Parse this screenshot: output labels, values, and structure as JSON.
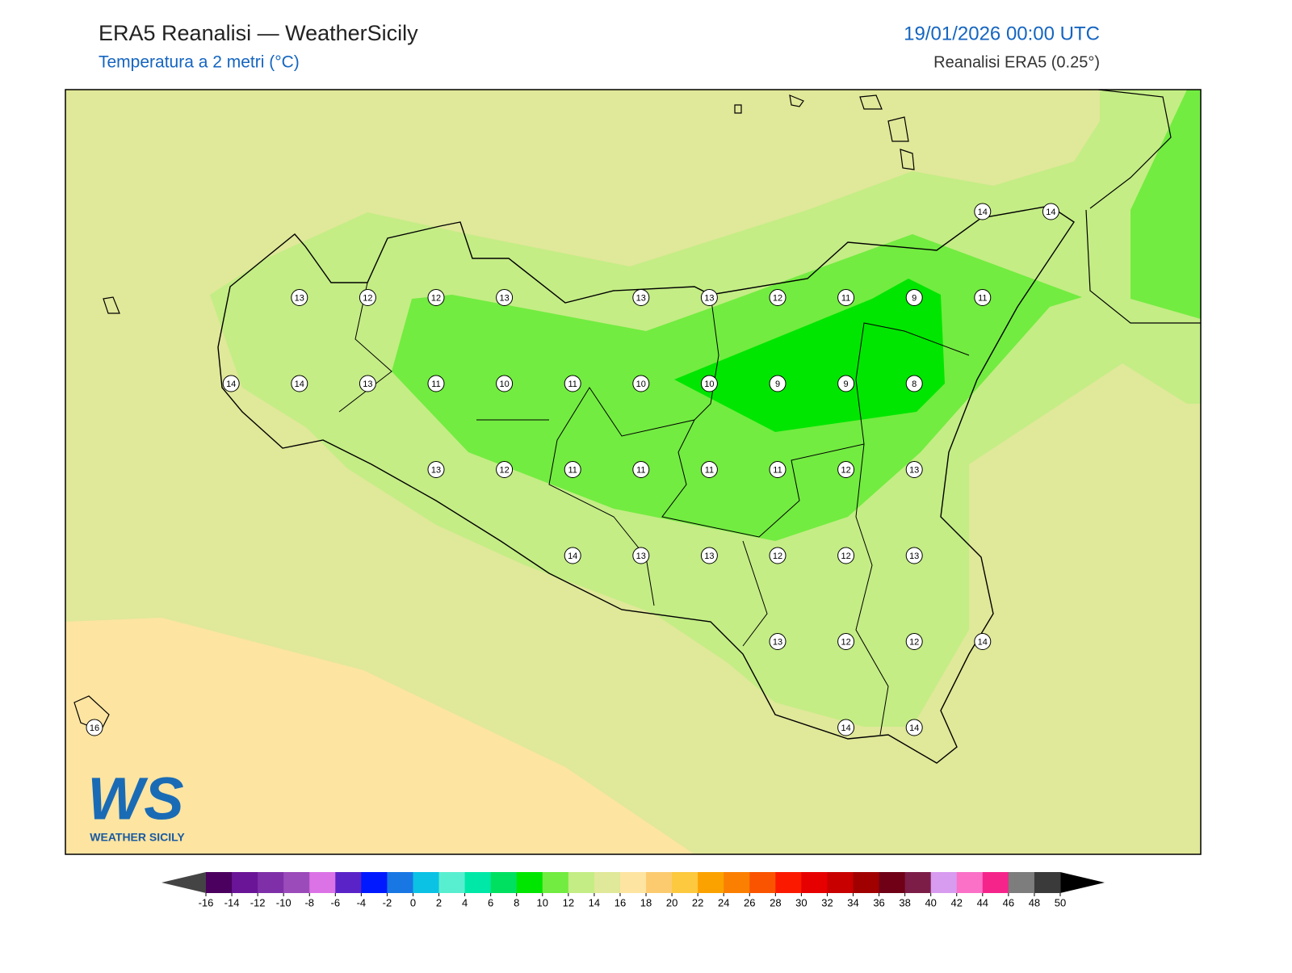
{
  "header": {
    "title": "ERA5 Reanalisi — WeatherSicily",
    "subtitle": "Temperatura a 2 metri (°C)",
    "date": "19/01/2026 00:00 UTC",
    "source": "Reanalisi ERA5 (0.25°)"
  },
  "stations": {
    "rows": [
      [
        null,
        null,
        null,
        null,
        null,
        null,
        null,
        null,
        null,
        null,
        null,
        null,
        null,
        14,
        14
      ],
      [
        null,
        null,
        null,
        13,
        12,
        12,
        13,
        null,
        13,
        13,
        12,
        11,
        9,
        11,
        null
      ],
      [
        null,
        null,
        14,
        14,
        13,
        11,
        10,
        11,
        10,
        10,
        9,
        9,
        8,
        null,
        null
      ],
      [
        null,
        null,
        null,
        null,
        null,
        13,
        12,
        11,
        11,
        11,
        11,
        12,
        13,
        null,
        null
      ],
      [
        null,
        null,
        null,
        null,
        null,
        null,
        null,
        14,
        13,
        13,
        12,
        12,
        13,
        null,
        null
      ],
      [
        null,
        null,
        null,
        null,
        null,
        null,
        null,
        null,
        null,
        null,
        13,
        12,
        12,
        14,
        null
      ],
      [
        16,
        null,
        null,
        null,
        null,
        null,
        null,
        null,
        null,
        null,
        null,
        14,
        14,
        null,
        null
      ]
    ]
  },
  "colorbar": {
    "ticks": [
      -16,
      -14,
      -12,
      -10,
      -8,
      -6,
      -4,
      -2,
      0,
      2,
      4,
      6,
      8,
      10,
      12,
      14,
      16,
      18,
      20,
      22,
      24,
      26,
      28,
      30,
      32,
      34,
      36,
      38,
      40,
      42,
      44,
      46,
      48,
      50
    ],
    "colors": [
      "#4b0060",
      "#6a1497",
      "#7f30a8",
      "#9c4bbb",
      "#db72e6",
      "#5a23c8",
      "#0019ff",
      "#1877e3",
      "#0bc2e4",
      "#58efd0",
      "#00e8a8",
      "#00e060",
      "#00e600",
      "#72ec40",
      "#c4ed85",
      "#e0e899",
      "#fde4a1",
      "#fccb70",
      "#fcc93f",
      "#fba200",
      "#fb7f00",
      "#fb5400",
      "#fb1900",
      "#e60000",
      "#c80000",
      "#a00000",
      "#6f0016",
      "#7c1d48",
      "#d79bf0",
      "#fa71c7",
      "#f5248b",
      "#7d7d7d",
      "#3a3a3a"
    ],
    "under_color": "#444444",
    "over_color": "#000000"
  },
  "logo": {
    "letters": "WS",
    "caption": "WEATHER SICILY"
  }
}
